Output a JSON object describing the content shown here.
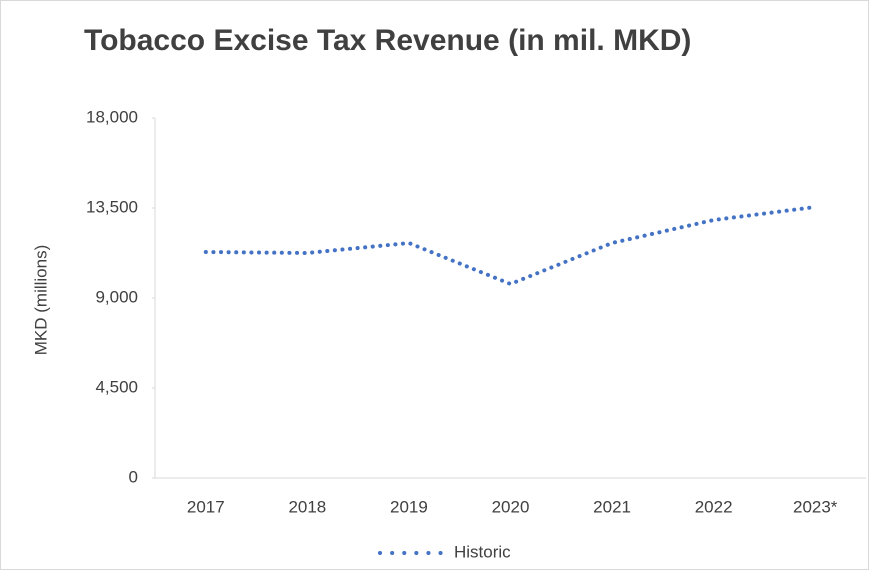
{
  "chart_data": {
    "type": "line",
    "title": "Tobacco Excise Tax Revenue (in mil. MKD)",
    "y_label": "MKD (millions)",
    "categories": [
      "2017",
      "2018",
      "2019",
      "2020",
      "2021",
      "2022",
      "2023*"
    ],
    "series": [
      {
        "name": "Historic",
        "color": "#4472c4",
        "values": [
          11300,
          11250,
          11750,
          9700,
          11750,
          12900,
          13550
        ]
      }
    ],
    "ylim": [
      0,
      18000
    ],
    "yticks": [
      0,
      {
        "value": 4500,
        "label": "4,500"
      },
      {
        "value": 9000,
        "label": "9,000"
      },
      {
        "value": 13500,
        "label": "13,500"
      },
      {
        "value": 18000,
        "label": "18,000"
      }
    ],
    "grid": false,
    "line_style": "dotted",
    "legend": "bottom"
  }
}
